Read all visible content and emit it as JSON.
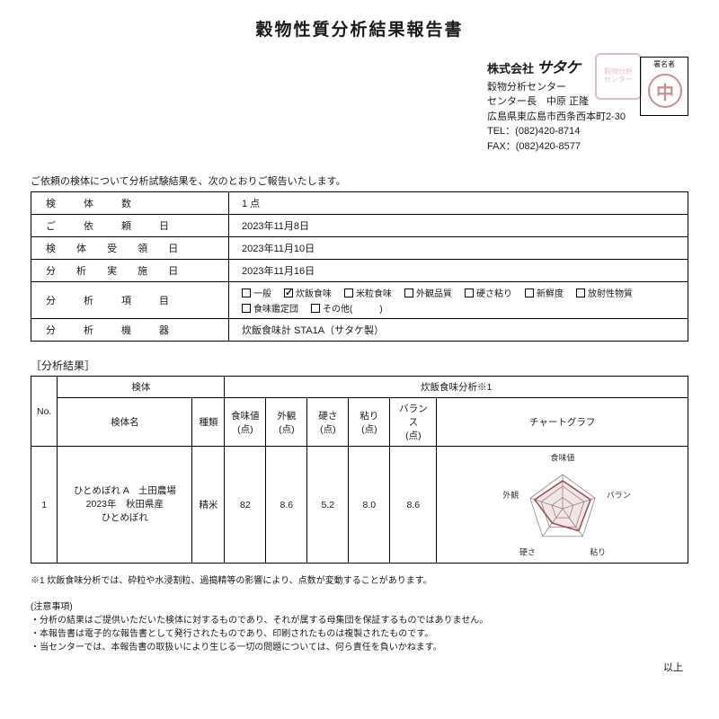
{
  "title": "穀物性質分析結果報告書",
  "company": {
    "name_prefix": "株式会社",
    "brand": "サタケ",
    "line1": "穀物分析センター",
    "line2": "センター長　中原 正隆",
    "line3": "広島県東広島市西条西本町2-30",
    "tel": "TEL：(082)420-8714",
    "fax": "FAX：(082)420-8577"
  },
  "sigbox_label": "署名者",
  "stamp2_char": "中",
  "intro": "ご依頼の検体について分析試験結果を、次のとおりご報告いたします。",
  "info_table": {
    "rows": [
      {
        "label": "検　体　数",
        "value": "1 点"
      },
      {
        "label": "ご　依　頼　日",
        "value": "2023年11月8日"
      },
      {
        "label": "検 体 受 領 日",
        "value": "2023年11月10日"
      },
      {
        "label": "分 析 実 施 日",
        "value": "2023年11月16日"
      }
    ],
    "items_label": "分　析　項　目",
    "checkboxes": [
      {
        "label": "一般",
        "checked": false
      },
      {
        "label": "炊飯食味",
        "checked": true
      },
      {
        "label": "米粒食味",
        "checked": false
      },
      {
        "label": "外観品質",
        "checked": false
      },
      {
        "label": "硬さ粘り",
        "checked": false
      },
      {
        "label": "新鮮度",
        "checked": false
      },
      {
        "label": "放射性物質",
        "checked": false
      },
      {
        "label": "食味鑑定団",
        "checked": false
      },
      {
        "label": "その他(　　　)",
        "checked": false
      }
    ],
    "machine_label": "分　析　機　器",
    "machine_value": "炊飯食味計 STA1A（サタケ製）"
  },
  "results_header": "［分析結果］",
  "results_table": {
    "group_sample": "検体",
    "group_analysis": "炊飯食味分析※1",
    "col_no": "No.",
    "col_name": "検体名",
    "col_type": "種類",
    "col_taste": "食味値\n(点)",
    "col_appear": "外観\n(点)",
    "col_hard": "硬さ\n(点)",
    "col_stick": "粘り\n(点)",
    "col_balance": "バランス\n(点)",
    "col_chart": "チャートグラフ",
    "row": {
      "no": "1",
      "name": "ひとめぼれ A　土田農場\n2023年　秋田県産\nひとめぼれ",
      "type": "精米",
      "taste": "82",
      "appear": "8.6",
      "hard": "5.2",
      "stick": "8.0",
      "balance": "8.6"
    },
    "chart": {
      "labels": [
        "食味値",
        "バランス",
        "粘り",
        "硬さ",
        "外観"
      ],
      "values_norm": [
        0.82,
        0.86,
        0.8,
        0.52,
        0.86
      ],
      "grid_color": "#888888",
      "line_color": "#9a4a4a",
      "fill_color": "rgba(180,110,110,0.18)"
    }
  },
  "footnote": "※1 炊飯食味分析では、砕粒や水浸割粒、過搗精等の影響により、点数が変動することがあります。",
  "notes_header": "(注意事項)",
  "notes": [
    "・分析の結果はご提供いただいた検体に対するものであり、それが属する母集団を保証するものではありません。",
    "・本報告書は電子的な報告書として発行されたものであり、印刷されたものは複製されたものです。",
    "・当センターでは、本報告書の取扱いにより生じる一切の問題については、何ら責任を負いかねます。"
  ],
  "end": "以上"
}
